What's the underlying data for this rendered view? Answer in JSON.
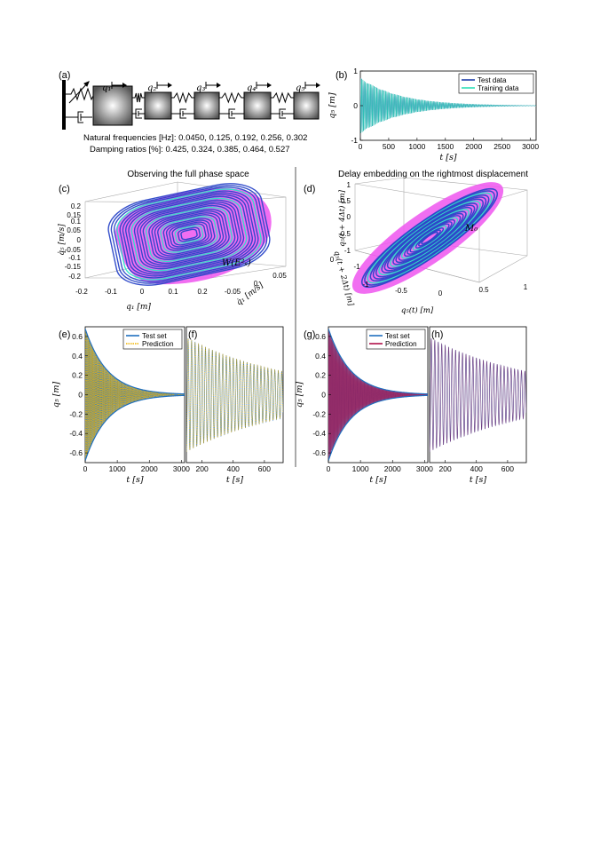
{
  "panels": {
    "a": {
      "label": "(a)",
      "dof_labels": [
        "q₁",
        "q₂",
        "q₃",
        "q₄",
        "q₅"
      ],
      "freq_line": "Natural frequencies [Hz]: 0.0450, 0.125, 0.192, 0.256, 0.302",
      "damp_line": "Damping ratios [%]: 0.425, 0.324, 0.385, 0.464, 0.527"
    },
    "c": {
      "label": "(c)",
      "section_title": "Observing the full phase space",
      "manifold_label": "W(E²ₛ)"
    },
    "d": {
      "label": "(d)",
      "section_title": "Delay embedding on the rightmost displacement",
      "manifold_label": "M₀"
    }
  },
  "chart_data": [
    {
      "id": "b",
      "panel_label": "(b)",
      "type": "line",
      "xlabel": "t [s]",
      "ylabel": "q₅ [m]",
      "xlim": [
        0,
        3100
      ],
      "ylim": [
        -1,
        1
      ],
      "x_ticks": [
        0,
        500,
        1000,
        1500,
        2000,
        2500,
        3000
      ],
      "x_tick_labels": [
        "0",
        "500",
        "1000",
        "1500",
        "2000",
        "2500",
        "3000"
      ],
      "y_ticks": [
        -1,
        0,
        1
      ],
      "y_tick_labels": [
        "-1",
        "0",
        "1"
      ],
      "series": [
        {
          "name": "Test data",
          "amplitude": 0.8,
          "decay_rate": 0.00145,
          "frequency_hz": 0.045,
          "color": "#1f3fa8"
        },
        {
          "name": "Training data",
          "amplitude": 0.8,
          "decay_rate": 0.00145,
          "frequency_hz": 0.045,
          "color": "#2ee0b8"
        }
      ],
      "legend": "top-right"
    },
    {
      "id": "c",
      "type": "scatter3d",
      "xlabel": "q₁ [m]",
      "ylabel": "q̇₁ [m/s]",
      "zlabel": "q̇₅ [m/s]",
      "x_ticks": [
        -0.2,
        -0.1,
        0,
        0.1,
        0.2
      ],
      "x_tick_labels": [
        "-0.2",
        "-0.1",
        "0",
        "0.1",
        "0.2"
      ],
      "y_ticks": [
        -0.05,
        0,
        0.05
      ],
      "y_tick_labels": [
        "-0.05",
        "0",
        "0.05"
      ],
      "z_ticks": [
        -0.2,
        -0.15,
        -0.1,
        -0.05,
        0,
        0.05,
        0.1,
        0.15,
        0.2
      ],
      "z_tick_labels": [
        "-0.2",
        "-0.15",
        "-0.1",
        "-0.05",
        "0",
        "0.05",
        "0.1",
        "0.15",
        "0.2"
      ],
      "colors": {
        "manifold": "#ee55ee",
        "trajectory": "#2a46c8",
        "highlight": "#2ee0c8"
      }
    },
    {
      "id": "d",
      "type": "scatter3d",
      "xlabel": "q₅(t) [m]",
      "ylabel": "q₅(t + 2Δt) [m]",
      "zlabel": "q₅(t + 4Δt) [m]",
      "x_ticks": [
        -1,
        -0.5,
        0,
        0.5,
        1
      ],
      "x_tick_labels": [
        "-1",
        "-0.5",
        "0",
        "0.5",
        "1"
      ],
      "y_ticks": [
        -1,
        0
      ],
      "y_tick_labels": [
        "-1",
        "0"
      ],
      "z_ticks": [
        -1,
        -0.5,
        0,
        0.5,
        1
      ],
      "z_tick_labels": [
        "-1",
        "-0.5",
        "0",
        "0.5",
        "1"
      ],
      "colors": {
        "manifold": "#ee55ee",
        "trajectory": "#2a46c8",
        "highlight": "#2ee0c8"
      }
    },
    {
      "id": "e",
      "panel_label": "(e)",
      "type": "line",
      "xlabel": "t [s]",
      "ylabel": "q₅ [m]",
      "xlim": [
        0,
        3100
      ],
      "ylim": [
        -0.7,
        0.7
      ],
      "x_ticks": [
        0,
        1000,
        2000,
        3000
      ],
      "x_tick_labels": [
        "0",
        "1000",
        "2000",
        "3000"
      ],
      "y_ticks": [
        -0.6,
        -0.4,
        -0.2,
        0,
        0.2,
        0.4,
        0.6
      ],
      "y_tick_labels": [
        "-0.6",
        "-0.4",
        "-0.2",
        "0",
        "0.2",
        "0.4",
        "0.6"
      ],
      "series": [
        {
          "name": "Test set",
          "amplitude": 0.68,
          "decay_rate": 0.00145,
          "frequency_hz": 0.045,
          "color": "#1f6fbf"
        },
        {
          "name": "Prediction",
          "amplitude": 0.68,
          "decay_rate": 0.00145,
          "frequency_hz": 0.045,
          "color": "#f0b400"
        }
      ],
      "legend": "top-right"
    },
    {
      "id": "f",
      "panel_label": "(f)",
      "type": "line",
      "xlabel": "t [s]",
      "xlim": [
        100,
        720
      ],
      "ylim": [
        -0.7,
        0.7
      ],
      "x_ticks": [
        200,
        400,
        600
      ],
      "x_tick_labels": [
        "200",
        "400",
        "600"
      ],
      "series": [
        {
          "name": "Test set",
          "amplitude": 0.68,
          "decay_rate": 0.00145,
          "frequency_hz": 0.045,
          "color": "#1f6fbf"
        },
        {
          "name": "Prediction",
          "amplitude": 0.68,
          "decay_rate": 0.00145,
          "frequency_hz": 0.045,
          "color": "#f0b400"
        }
      ]
    },
    {
      "id": "g",
      "panel_label": "(g)",
      "type": "line",
      "xlabel": "t [s]",
      "ylabel": "q₅ [m]",
      "xlim": [
        0,
        3100
      ],
      "ylim": [
        -0.7,
        0.7
      ],
      "x_ticks": [
        0,
        1000,
        2000,
        3000
      ],
      "x_tick_labels": [
        "0",
        "1000",
        "2000",
        "3000"
      ],
      "y_ticks": [
        -0.6,
        -0.4,
        -0.2,
        0,
        0.2,
        0.4,
        0.6
      ],
      "y_tick_labels": [
        "-0.6",
        "-0.4",
        "-0.2",
        "0",
        "0.2",
        "0.4",
        "0.6"
      ],
      "series": [
        {
          "name": "Test set",
          "amplitude": 0.68,
          "decay_rate": 0.00145,
          "frequency_hz": 0.045,
          "color": "#1f6fbf"
        },
        {
          "name": "Prediction",
          "amplitude": 0.68,
          "decay_rate": 0.00145,
          "frequency_hz": 0.045,
          "color": "#b0104a"
        }
      ],
      "legend": "top-right"
    },
    {
      "id": "h",
      "panel_label": "(h)",
      "type": "line",
      "xlabel": "t [s]",
      "xlim": [
        100,
        720
      ],
      "ylim": [
        -0.7,
        0.7
      ],
      "x_ticks": [
        200,
        400,
        600
      ],
      "x_tick_labels": [
        "200",
        "400",
        "600"
      ],
      "series": [
        {
          "name": "Test set",
          "amplitude": 0.68,
          "decay_rate": 0.00145,
          "frequency_hz": 0.045,
          "color": "#1f6fbf"
        },
        {
          "name": "Prediction",
          "amplitude": 0.68,
          "decay_rate": 0.00145,
          "frequency_hz": 0.045,
          "color": "#b0104a"
        }
      ]
    }
  ]
}
